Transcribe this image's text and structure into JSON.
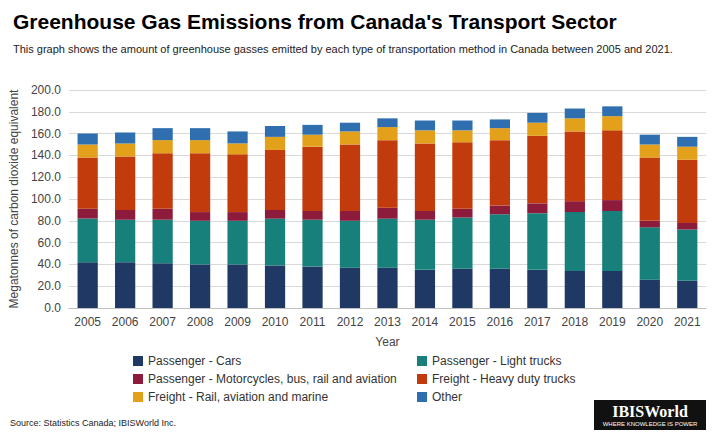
{
  "chart_data": {
    "type": "bar",
    "title": "Greenhouse Gas Emissions from Canada's Transport Sector",
    "subtitle": "This graph shows the amount of greenhouse gasses emitted by each type of transportation method in Canada between 2005 and 2021.",
    "x_label": "Year",
    "y_label": "Megatonnes of carbon dioxide equivalent",
    "source": "Source: Statistics Canada; IBISWorld Inc.",
    "logo": "IBISWorld",
    "logo_tagline": "WHERE KNOWLEDGE IS POWER",
    "categories": [
      "2005",
      "2006",
      "2007",
      "2008",
      "2009",
      "2010",
      "2011",
      "2012",
      "2013",
      "2014",
      "2015",
      "2016",
      "2017",
      "2018",
      "2019",
      "2020",
      "2021"
    ],
    "series": [
      {
        "name": "Passenger - Cars",
        "color": "#1f3864",
        "values": [
          42,
          42,
          41,
          40,
          40,
          39,
          38,
          37,
          37,
          35,
          36,
          36,
          35,
          34,
          34,
          26,
          25
        ]
      },
      {
        "name": "Passenger - Light trucks",
        "color": "#17807a",
        "values": [
          40,
          39,
          40,
          40,
          40,
          43,
          43,
          43,
          45,
          46,
          47,
          50,
          52,
          54,
          55,
          48,
          47
        ]
      },
      {
        "name": "Passenger - Motorcycles, bus, rail and aviation",
        "color": "#8c1b3c",
        "values": [
          9,
          9,
          10,
          8,
          8,
          8,
          8,
          9,
          10,
          8,
          8,
          8,
          9,
          10,
          10,
          6,
          6
        ]
      },
      {
        "name": "Freight - Heavy duty trucks",
        "color": "#c23b0c",
        "values": [
          47,
          49,
          51,
          54,
          53,
          55,
          59,
          61,
          62,
          62,
          61,
          60,
          62,
          64,
          64,
          58,
          58
        ]
      },
      {
        "name": "Freight - Rail, aviation and marine",
        "color": "#e3a11b",
        "values": [
          12,
          12,
          12,
          12,
          10,
          12,
          11,
          12,
          12,
          12,
          11,
          11,
          12,
          12,
          13,
          12,
          12
        ]
      },
      {
        "name": "Other",
        "color": "#2f6fb0",
        "values": [
          10,
          10,
          11,
          11,
          11,
          10,
          9,
          8,
          8,
          9,
          9,
          8,
          9,
          9,
          9,
          9,
          9
        ]
      }
    ],
    "stacked": true,
    "grid": true,
    "legend": "bottom",
    "ylim": [
      0,
      200
    ],
    "yticks": [
      {
        "value": 0,
        "label": "0.0"
      },
      {
        "value": 20,
        "label": "20.0"
      },
      {
        "value": 40,
        "label": "40.0"
      },
      {
        "value": 60,
        "label": "60.0"
      },
      {
        "value": 80,
        "label": "80.0"
      },
      {
        "value": 100,
        "label": "100.0"
      },
      {
        "value": 120,
        "label": "120.0"
      },
      {
        "value": 140,
        "label": "140.0"
      },
      {
        "value": 160,
        "label": "160.0"
      },
      {
        "value": 180,
        "label": "180.0"
      },
      {
        "value": 200,
        "label": "200.0"
      }
    ]
  }
}
